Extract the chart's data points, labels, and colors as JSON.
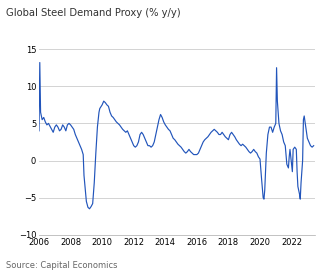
{
  "title": "Global Steel Demand Proxy (% y/y)",
  "source": "Source: Capital Economics",
  "line_color": "#2255bb",
  "background_color": "#ffffff",
  "grid_color": "#cccccc",
  "xlim": [
    2006,
    2023.5
  ],
  "ylim": [
    -10,
    15
  ],
  "yticks": [
    -10,
    -5,
    0,
    5,
    10,
    15
  ],
  "xticks": [
    2006,
    2008,
    2010,
    2012,
    2014,
    2016,
    2018,
    2020,
    2022
  ],
  "data": [
    [
      2006.0,
      4.0
    ],
    [
      2006.05,
      13.2
    ],
    [
      2006.1,
      6.5
    ],
    [
      2006.2,
      5.5
    ],
    [
      2006.3,
      5.8
    ],
    [
      2006.4,
      5.2
    ],
    [
      2006.5,
      4.8
    ],
    [
      2006.6,
      5.0
    ],
    [
      2006.7,
      4.6
    ],
    [
      2006.8,
      4.2
    ],
    [
      2006.9,
      3.8
    ],
    [
      2007.0,
      4.5
    ],
    [
      2007.1,
      4.8
    ],
    [
      2007.2,
      4.5
    ],
    [
      2007.3,
      4.0
    ],
    [
      2007.4,
      4.2
    ],
    [
      2007.5,
      4.8
    ],
    [
      2007.6,
      4.5
    ],
    [
      2007.7,
      4.0
    ],
    [
      2007.8,
      4.8
    ],
    [
      2007.9,
      5.0
    ],
    [
      2008.0,
      4.8
    ],
    [
      2008.1,
      4.5
    ],
    [
      2008.2,
      4.2
    ],
    [
      2008.3,
      3.5
    ],
    [
      2008.4,
      3.0
    ],
    [
      2008.5,
      2.5
    ],
    [
      2008.6,
      2.0
    ],
    [
      2008.7,
      1.5
    ],
    [
      2008.8,
      0.8
    ],
    [
      2008.85,
      -2.0
    ],
    [
      2009.0,
      -5.5
    ],
    [
      2009.1,
      -6.3
    ],
    [
      2009.2,
      -6.5
    ],
    [
      2009.3,
      -6.2
    ],
    [
      2009.4,
      -5.8
    ],
    [
      2009.5,
      -3.0
    ],
    [
      2009.6,
      1.0
    ],
    [
      2009.7,
      4.5
    ],
    [
      2009.8,
      6.5
    ],
    [
      2009.85,
      7.0
    ],
    [
      2010.0,
      7.5
    ],
    [
      2010.1,
      8.0
    ],
    [
      2010.2,
      7.8
    ],
    [
      2010.3,
      7.5
    ],
    [
      2010.4,
      7.3
    ],
    [
      2010.5,
      6.5
    ],
    [
      2010.6,
      6.0
    ],
    [
      2010.7,
      5.8
    ],
    [
      2010.8,
      5.5
    ],
    [
      2010.9,
      5.2
    ],
    [
      2011.0,
      5.0
    ],
    [
      2011.1,
      4.8
    ],
    [
      2011.2,
      4.5
    ],
    [
      2011.3,
      4.2
    ],
    [
      2011.4,
      4.0
    ],
    [
      2011.5,
      3.8
    ],
    [
      2011.6,
      4.0
    ],
    [
      2011.7,
      3.5
    ],
    [
      2011.8,
      3.0
    ],
    [
      2011.9,
      2.5
    ],
    [
      2012.0,
      2.0
    ],
    [
      2012.1,
      1.8
    ],
    [
      2012.2,
      2.0
    ],
    [
      2012.3,
      2.5
    ],
    [
      2012.4,
      3.5
    ],
    [
      2012.5,
      3.8
    ],
    [
      2012.6,
      3.5
    ],
    [
      2012.7,
      3.0
    ],
    [
      2012.8,
      2.5
    ],
    [
      2012.9,
      2.0
    ],
    [
      2013.0,
      2.0
    ],
    [
      2013.1,
      1.8
    ],
    [
      2013.2,
      2.0
    ],
    [
      2013.3,
      2.5
    ],
    [
      2013.4,
      3.5
    ],
    [
      2013.5,
      4.5
    ],
    [
      2013.6,
      5.5
    ],
    [
      2013.7,
      6.2
    ],
    [
      2013.8,
      5.8
    ],
    [
      2013.9,
      5.2
    ],
    [
      2014.0,
      4.8
    ],
    [
      2014.1,
      4.5
    ],
    [
      2014.2,
      4.2
    ],
    [
      2014.3,
      4.0
    ],
    [
      2014.4,
      3.5
    ],
    [
      2014.5,
      3.0
    ],
    [
      2014.6,
      2.8
    ],
    [
      2014.7,
      2.5
    ],
    [
      2014.8,
      2.2
    ],
    [
      2014.9,
      2.0
    ],
    [
      2015.0,
      1.8
    ],
    [
      2015.1,
      1.5
    ],
    [
      2015.2,
      1.2
    ],
    [
      2015.3,
      1.0
    ],
    [
      2015.4,
      1.2
    ],
    [
      2015.5,
      1.5
    ],
    [
      2015.6,
      1.2
    ],
    [
      2015.7,
      1.0
    ],
    [
      2015.8,
      0.8
    ],
    [
      2015.9,
      0.8
    ],
    [
      2016.0,
      0.8
    ],
    [
      2016.1,
      1.0
    ],
    [
      2016.2,
      1.5
    ],
    [
      2016.3,
      2.0
    ],
    [
      2016.4,
      2.5
    ],
    [
      2016.5,
      2.8
    ],
    [
      2016.6,
      3.0
    ],
    [
      2016.7,
      3.2
    ],
    [
      2016.8,
      3.5
    ],
    [
      2016.9,
      3.8
    ],
    [
      2017.0,
      4.0
    ],
    [
      2017.1,
      4.2
    ],
    [
      2017.2,
      4.0
    ],
    [
      2017.3,
      3.8
    ],
    [
      2017.4,
      3.5
    ],
    [
      2017.5,
      3.5
    ],
    [
      2017.6,
      3.8
    ],
    [
      2017.7,
      3.5
    ],
    [
      2017.8,
      3.2
    ],
    [
      2017.9,
      3.0
    ],
    [
      2018.0,
      2.8
    ],
    [
      2018.1,
      3.5
    ],
    [
      2018.2,
      3.8
    ],
    [
      2018.3,
      3.5
    ],
    [
      2018.4,
      3.2
    ],
    [
      2018.5,
      2.8
    ],
    [
      2018.6,
      2.5
    ],
    [
      2018.7,
      2.2
    ],
    [
      2018.8,
      2.0
    ],
    [
      2018.9,
      2.2
    ],
    [
      2019.0,
      2.0
    ],
    [
      2019.1,
      1.8
    ],
    [
      2019.2,
      1.5
    ],
    [
      2019.3,
      1.2
    ],
    [
      2019.4,
      1.0
    ],
    [
      2019.5,
      1.2
    ],
    [
      2019.6,
      1.5
    ],
    [
      2019.7,
      1.2
    ],
    [
      2019.8,
      1.0
    ],
    [
      2019.9,
      0.5
    ],
    [
      2020.0,
      0.2
    ],
    [
      2020.1,
      -2.5
    ],
    [
      2020.2,
      -5.0
    ],
    [
      2020.25,
      -5.2
    ],
    [
      2020.3,
      -4.0
    ],
    [
      2020.4,
      1.0
    ],
    [
      2020.5,
      3.5
    ],
    [
      2020.6,
      4.5
    ],
    [
      2020.7,
      4.5
    ],
    [
      2020.8,
      3.8
    ],
    [
      2020.9,
      4.5
    ],
    [
      2021.0,
      5.0
    ],
    [
      2021.05,
      12.5
    ],
    [
      2021.1,
      8.0
    ],
    [
      2021.2,
      5.0
    ],
    [
      2021.3,
      4.0
    ],
    [
      2021.4,
      3.5
    ],
    [
      2021.5,
      2.5
    ],
    [
      2021.6,
      2.0
    ],
    [
      2021.7,
      -0.5
    ],
    [
      2021.8,
      -1.0
    ],
    [
      2021.85,
      0.5
    ],
    [
      2021.9,
      1.5
    ],
    [
      2022.0,
      -0.5
    ],
    [
      2022.05,
      -1.5
    ],
    [
      2022.1,
      1.5
    ],
    [
      2022.2,
      1.8
    ],
    [
      2022.3,
      1.5
    ],
    [
      2022.35,
      -1.5
    ],
    [
      2022.4,
      -3.5
    ],
    [
      2022.5,
      -4.5
    ],
    [
      2022.55,
      -5.2
    ],
    [
      2022.6,
      -3.0
    ],
    [
      2022.7,
      0.0
    ],
    [
      2022.75,
      5.5
    ],
    [
      2022.8,
      6.0
    ],
    [
      2022.9,
      4.5
    ],
    [
      2023.0,
      3.0
    ],
    [
      2023.1,
      2.5
    ],
    [
      2023.2,
      2.0
    ],
    [
      2023.3,
      1.8
    ],
    [
      2023.4,
      2.0
    ]
  ]
}
